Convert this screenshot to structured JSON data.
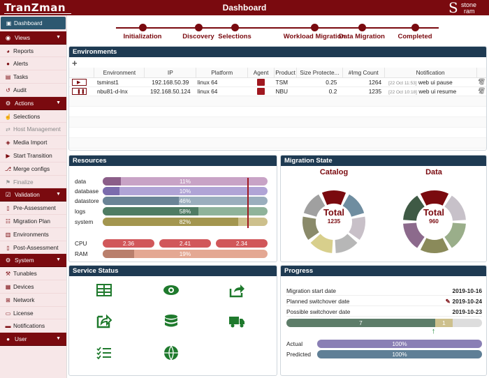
{
  "app": {
    "logo": "TranZman",
    "title": "Dashboard",
    "brand_big": "S",
    "brand_line1": "stone",
    "brand_line2": "ram"
  },
  "sidebar": [
    {
      "kind": "item",
      "label": "Dashboard",
      "icon": "dashboard-icon",
      "glyph": "▣",
      "active": true
    },
    {
      "kind": "head",
      "label": "Views",
      "icon": "eye-icon",
      "glyph": "◉"
    },
    {
      "kind": "item",
      "label": "Reports",
      "icon": "pie-chart-icon",
      "glyph": "◕"
    },
    {
      "kind": "item",
      "label": "Alerts",
      "icon": "alert-icon",
      "glyph": "●"
    },
    {
      "kind": "item",
      "label": "Tasks",
      "icon": "tasks-icon",
      "glyph": "▤"
    },
    {
      "kind": "item",
      "label": "Audit",
      "icon": "history-icon",
      "glyph": "↺"
    },
    {
      "kind": "head",
      "label": "Actions",
      "icon": "gears-icon",
      "glyph": "⚙"
    },
    {
      "kind": "item",
      "label": "Selections",
      "icon": "pointer-icon",
      "glyph": "☝"
    },
    {
      "kind": "item",
      "label": "Host Management",
      "icon": "exchange-icon",
      "glyph": "⇄",
      "disabled": true
    },
    {
      "kind": "item",
      "label": "Media Import",
      "icon": "media-icon",
      "glyph": "◈"
    },
    {
      "kind": "item",
      "label": "Start Transition",
      "icon": "play-icon",
      "glyph": "▶"
    },
    {
      "kind": "item",
      "label": "Merge configs",
      "icon": "merge-icon",
      "glyph": "⎇"
    },
    {
      "kind": "item",
      "label": "Finalize",
      "icon": "flag-icon",
      "glyph": "⚑",
      "disabled": true
    },
    {
      "kind": "head",
      "label": "Validation",
      "icon": "check-square-icon",
      "glyph": "☑"
    },
    {
      "kind": "item",
      "label": "Pre-Assessment",
      "icon": "document-icon",
      "glyph": "▯"
    },
    {
      "kind": "item",
      "label": "Migration Plan",
      "icon": "list-icon",
      "glyph": "☷"
    },
    {
      "kind": "item",
      "label": "Environments",
      "icon": "building-icon",
      "glyph": "▥"
    },
    {
      "kind": "item",
      "label": "Post-Assessment",
      "icon": "document-icon",
      "glyph": "▯"
    },
    {
      "kind": "head",
      "label": "System",
      "icon": "cogs-icon",
      "glyph": "⚙"
    },
    {
      "kind": "item",
      "label": "Tunables",
      "icon": "wrench-icon",
      "glyph": "⚒"
    },
    {
      "kind": "item",
      "label": "Devices",
      "icon": "devices-icon",
      "glyph": "▦"
    },
    {
      "kind": "item",
      "label": "Network",
      "icon": "network-icon",
      "glyph": "⊞"
    },
    {
      "kind": "item",
      "label": "License",
      "icon": "license-icon",
      "glyph": "▭"
    },
    {
      "kind": "item",
      "label": "Notifications",
      "icon": "notification-icon",
      "glyph": "▬"
    },
    {
      "kind": "head",
      "label": "User",
      "icon": "user-icon",
      "glyph": "●"
    }
  ],
  "wizard": [
    "Initialization",
    "Discovery",
    "Selections",
    "Workload Migration",
    "Data Migration",
    "Completed"
  ],
  "environments": {
    "title": "Environments",
    "add_glyph": "+",
    "columns": [
      "",
      "Environment",
      "IP",
      "Platform",
      "Agent",
      "Product",
      "Size Protecte...",
      "#Img Count",
      "Notification",
      ""
    ],
    "rows": [
      {
        "state_glyph": "▶",
        "name": "tsminst1",
        "ip": "192.168.50.39",
        "platform": "linux 64",
        "product": "TSM",
        "size": "0.25",
        "img": "1264",
        "ts": "[22 Oct 11:53]",
        "note": "web ui pause"
      },
      {
        "state_glyph": "❚❚",
        "name": "nbu81-d-lnx",
        "ip": "192.168.50.124",
        "platform": "linux 64",
        "product": "NBU",
        "size": "0.2",
        "img": "1235",
        "ts": "[22 Oct 10:18]",
        "note": "web ui resume"
      }
    ]
  },
  "resources": {
    "title": "Resources",
    "bars": [
      {
        "label": "data",
        "pct": 11,
        "text": "11%",
        "bg": "#c8a3c6",
        "fg": "#8b5e89"
      },
      {
        "label": "database",
        "pct": 10,
        "text": "10%",
        "bg": "#b0a4d6",
        "fg": "#7b6cad"
      },
      {
        "label": "datastore",
        "pct": 46,
        "text": "46%",
        "bg": "#9aaebd",
        "fg": "#6a8496"
      },
      {
        "label": "logs",
        "pct": 58,
        "text": "58%",
        "bg": "#8fb39a",
        "fg": "#4f7c63"
      },
      {
        "label": "system",
        "pct": 82,
        "text": "82%",
        "bg": "#cdc08c",
        "fg": "#a3964f"
      }
    ],
    "cpu_label": "CPU",
    "cpu": [
      "2.36",
      "2.41",
      "2.34"
    ],
    "ram_label": "RAM",
    "ram": {
      "pct": 19,
      "text": "19%"
    }
  },
  "migration_state": {
    "title": "Migration State",
    "catalog": {
      "title": "Catalog",
      "total_label": "Total",
      "total": "1235"
    },
    "data": {
      "title": "Data",
      "total_label": "Total",
      "total": "960"
    }
  },
  "service_status": {
    "title": "Service Status",
    "icons": [
      "table-icon",
      "eye-icon",
      "share-icon",
      "external-share-icon",
      "database-icon",
      "truck-icon",
      "checklist-icon",
      "globe-icon"
    ],
    "color": "#1f7a2d"
  },
  "progress": {
    "title": "Progress",
    "lines": [
      {
        "label": "Migration start date",
        "value": "2019-10-16",
        "edit": false
      },
      {
        "label": "Planned switchover date",
        "value": "2019-10-24",
        "edit": true
      },
      {
        "label": "Possible switchover date",
        "value": "2019-10-23",
        "edit": false
      }
    ],
    "timeline": {
      "done": "7",
      "current": "1",
      "done_frac": 0.76,
      "current_frac": 0.09
    },
    "actual_label": "Actual",
    "actual_text": "100%",
    "actual_pct": 100,
    "predicted_label": "Predicted",
    "predicted_text": "100%",
    "predicted_pct": 100
  },
  "colors": {
    "brand": "#7a0a0f",
    "navy": "#1e3a52",
    "active": "#2d5870"
  }
}
